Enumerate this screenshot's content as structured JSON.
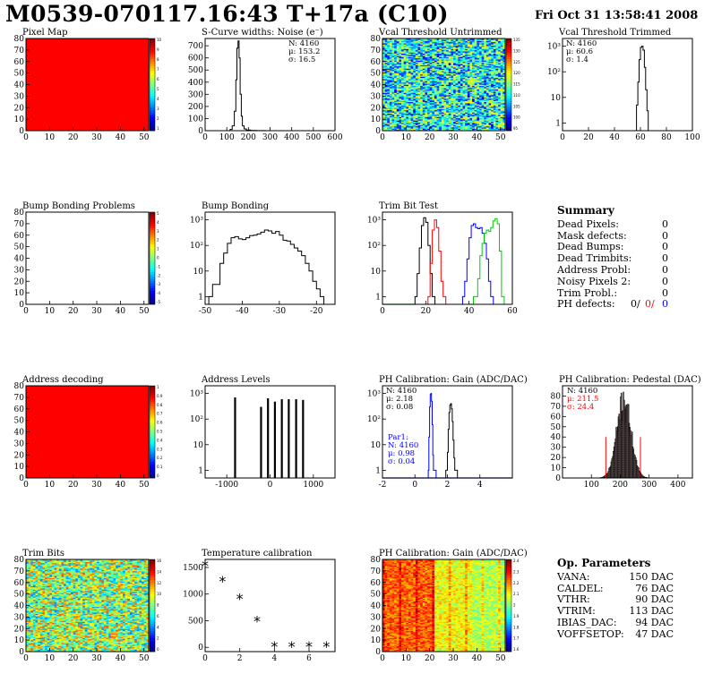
{
  "header": {
    "title": "M0539-070117.16:43 T+17a (C10)",
    "date": "Fri Oct 31 13:58:41 2008"
  },
  "colors": {
    "red": "#ff0000",
    "blue": "#0000ff",
    "green": "#00cc00",
    "frame": "#000000"
  },
  "chart_data": [
    {
      "id": "pixel_map",
      "type": "heatmap",
      "title": "Pixel Map",
      "xlim": [
        0,
        52
      ],
      "ylim": [
        0,
        80
      ],
      "xticks": [
        0,
        10,
        20,
        30,
        40,
        50
      ],
      "yticks": [
        0,
        10,
        20,
        30,
        40,
        50,
        60,
        70,
        80
      ],
      "fill": "uniform-red",
      "zlim": [
        0,
        10
      ],
      "zticks": [
        "10",
        "9",
        "8",
        "7",
        "6",
        "5",
        "4",
        "3",
        "2",
        "1"
      ]
    },
    {
      "id": "noise",
      "type": "line",
      "title": "S-Curve widths: Noise (e⁻)",
      "xlim": [
        0,
        600
      ],
      "ylim": [
        0,
        760
      ],
      "xticks": [
        0,
        100,
        200,
        300,
        400,
        500,
        600
      ],
      "yticks": [
        0,
        100,
        200,
        300,
        400,
        500,
        600,
        700
      ],
      "stats": [
        "N: 4160",
        "μ: 153.2",
        "σ: 16.5"
      ],
      "series": [
        {
          "color": "#000000",
          "x": [
            100,
            115,
            125,
            135,
            142,
            147,
            152,
            157,
            162,
            167,
            172,
            180,
            190,
            210,
            240,
            280
          ],
          "y": [
            0,
            10,
            40,
            160,
            420,
            680,
            740,
            600,
            300,
            120,
            40,
            15,
            6,
            2,
            1,
            0
          ]
        }
      ]
    },
    {
      "id": "vcal_untrimmed",
      "type": "heatmap",
      "title": "Vcal Threshold Untrimmed",
      "xlim": [
        0,
        52
      ],
      "ylim": [
        0,
        80
      ],
      "xticks": [
        0,
        10,
        20,
        30,
        40,
        50
      ],
      "yticks": [
        0,
        10,
        20,
        30,
        40,
        50,
        60,
        70,
        80
      ],
      "fill": "noise-jet",
      "zlim": [
        95,
        135
      ],
      "zticks": [
        "135",
        "130",
        "125",
        "120",
        "115",
        "110",
        "105",
        "100",
        "95"
      ]
    },
    {
      "id": "vcal_trimmed",
      "type": "line",
      "title": "Vcal Threshold Trimmed",
      "xlim": [
        0,
        100
      ],
      "ylim": [
        0.5,
        2000
      ],
      "log": true,
      "xticks": [
        0,
        20,
        40,
        60,
        80,
        100
      ],
      "yticks": [
        1,
        10,
        100,
        1000
      ],
      "ytickLabels": [
        "1",
        "10",
        "10²",
        "10³"
      ],
      "stats": [
        "N: 4160",
        "μ: 60.6",
        "σ:  1.4"
      ],
      "series": [
        {
          "color": "#000000",
          "x": [
            55,
            57,
            58,
            59,
            60,
            61,
            62,
            63,
            64,
            65,
            66
          ],
          "y": [
            0.5,
            5,
            40,
            300,
            900,
            1000,
            700,
            150,
            20,
            3,
            0.5
          ]
        }
      ]
    },
    {
      "id": "bump_problems",
      "type": "heatmap",
      "title": "Bump Bonding Problems",
      "xlim": [
        0,
        52
      ],
      "ylim": [
        0,
        80
      ],
      "xticks": [
        0,
        10,
        20,
        30,
        40,
        50
      ],
      "yticks": [
        0,
        10,
        20,
        30,
        40,
        50,
        60,
        70,
        80
      ],
      "fill": "empty",
      "zlim": [
        -5,
        5
      ],
      "zticks": [
        "5",
        "4",
        "3",
        "2",
        "1",
        "0",
        "-1",
        "-2",
        "-3",
        "-4",
        "-5"
      ]
    },
    {
      "id": "bump_bonding",
      "type": "line",
      "title": "Bump Bonding",
      "xlim": [
        -50,
        -15
      ],
      "ylim": [
        0.5,
        2000
      ],
      "log": true,
      "xticks": [
        -50,
        -40,
        -30,
        -20
      ],
      "yticks": [
        1,
        10,
        100,
        1000
      ],
      "ytickLabels": [
        "1",
        "10",
        "10²",
        "10³"
      ],
      "series": [
        {
          "color": "#000000",
          "x": [
            -49,
            -48,
            -46,
            -45,
            -44,
            -43,
            -42,
            -41,
            -40,
            -39,
            -38,
            -37,
            -36,
            -35,
            -34,
            -33,
            -32,
            -31,
            -30,
            -29,
            -28,
            -27,
            -26,
            -25,
            -24,
            -23,
            -22,
            -21,
            -20,
            -19,
            -18
          ],
          "y": [
            1,
            3,
            20,
            50,
            120,
            200,
            220,
            180,
            170,
            200,
            240,
            250,
            280,
            330,
            400,
            370,
            300,
            350,
            250,
            160,
            150,
            110,
            80,
            60,
            40,
            20,
            10,
            4,
            2,
            1,
            0.5
          ]
        }
      ]
    },
    {
      "id": "trim_bit_test",
      "type": "line",
      "title": "Trim Bit Test",
      "xlim": [
        0,
        60
      ],
      "ylim": [
        0.5,
        2000
      ],
      "log": true,
      "xticks": [
        0,
        20,
        40,
        60
      ],
      "yticks": [
        1,
        10,
        100,
        1000
      ],
      "ytickLabels": [
        "1",
        "10",
        "10²",
        "10³"
      ],
      "series": [
        {
          "color": "#000000",
          "x": [
            15,
            16,
            17,
            18,
            19,
            20,
            21,
            22,
            23
          ],
          "y": [
            1,
            8,
            80,
            600,
            1200,
            800,
            100,
            8,
            1
          ]
        },
        {
          "color": "#ff0000",
          "x": [
            21,
            22,
            23,
            24,
            25,
            26,
            27,
            28
          ],
          "y": [
            1,
            20,
            400,
            1000,
            500,
            60,
            4,
            1
          ]
        },
        {
          "color": "#0000ff",
          "x": [
            37,
            38,
            39,
            40,
            41,
            42,
            43,
            44,
            45,
            46,
            47,
            48,
            49,
            50
          ],
          "y": [
            1,
            4,
            30,
            200,
            600,
            700,
            500,
            450,
            500,
            300,
            120,
            30,
            4,
            1
          ]
        },
        {
          "color": "#00cc00",
          "x": [
            42,
            44,
            45,
            46,
            47,
            48,
            49,
            50,
            51,
            52,
            53,
            54,
            55
          ],
          "y": [
            1,
            5,
            40,
            120,
            300,
            400,
            350,
            500,
            900,
            1100,
            700,
            60,
            1
          ]
        }
      ]
    },
    {
      "id": "address_decoding",
      "type": "heatmap",
      "title": "Address decoding",
      "xlim": [
        0,
        52
      ],
      "ylim": [
        0,
        80
      ],
      "xticks": [
        0,
        10,
        20,
        30,
        40,
        50
      ],
      "yticks": [
        0,
        10,
        20,
        30,
        40,
        50,
        60,
        70,
        80
      ],
      "fill": "uniform-red",
      "zlim": [
        0,
        1
      ],
      "zticks": [
        "1",
        "0.9",
        "0.8",
        "0.7",
        "0.6",
        "0.5",
        "0.4",
        "0.3",
        "0.2",
        "0.1",
        "0"
      ]
    },
    {
      "id": "address_levels",
      "type": "bar",
      "title": "Address Levels",
      "xlim": [
        -1500,
        1500
      ],
      "ylim": [
        0.5,
        2000
      ],
      "log": true,
      "xticks": [
        -1000,
        0,
        1000
      ],
      "yticks": [
        1,
        10,
        100,
        1000
      ],
      "ytickLabels": [
        "1",
        "10",
        "10²",
        "10³"
      ],
      "x": [
        -810,
        -210,
        -50,
        110,
        270,
        430,
        600,
        760
      ],
      "values": [
        700,
        300,
        650,
        480,
        600,
        600,
        600,
        560
      ]
    },
    {
      "id": "ph_gain",
      "type": "line",
      "title": "PH Calibration: Gain (ADC/DAC)",
      "xlim": [
        -2,
        6
      ],
      "ylim": [
        0.5,
        2000
      ],
      "log": true,
      "xticks": [
        -2,
        0,
        2,
        4
      ],
      "yticks": [
        1,
        10,
        100,
        1000
      ],
      "ytickLabels": [
        "1",
        "10",
        "10²",
        "10³"
      ],
      "stats": [
        "N: 4160",
        "μ: 2.18",
        "σ: 0.08"
      ],
      "stats2": [
        "Par1:",
        "N: 4160",
        "μ: 0.98",
        "σ: 0.04"
      ],
      "series": [
        {
          "color": "#000000",
          "x": [
            1.9,
            2.0,
            2.05,
            2.1,
            2.15,
            2.2,
            2.25,
            2.3,
            2.35,
            2.4,
            2.45
          ],
          "y": [
            1,
            5,
            40,
            180,
            350,
            400,
            250,
            80,
            15,
            3,
            1
          ]
        },
        {
          "color": "#0000ff",
          "x": [
            0.82,
            0.86,
            0.9,
            0.94,
            0.98,
            1.02,
            1.06,
            1.1,
            1.14
          ],
          "y": [
            1,
            20,
            300,
            900,
            1000,
            500,
            60,
            4,
            1
          ]
        }
      ]
    },
    {
      "id": "ph_pedestal",
      "type": "bar",
      "title": "PH Calibration: Pedestal (DAC)",
      "xlim": [
        0,
        450
      ],
      "ylim": [
        0,
        90
      ],
      "xticks": [
        100,
        200,
        300,
        400
      ],
      "yticks": [
        0,
        10,
        20,
        30,
        40,
        50,
        60,
        70,
        80
      ],
      "stats": [
        "N: 4160",
        "μ: 211.5",
        "σ: 24.4"
      ],
      "values_note": "gaussian",
      "mean": 211.5,
      "sigma": 24.4,
      "peak": 80,
      "cut_lines": [
        150,
        270
      ]
    },
    {
      "id": "trim_bits",
      "type": "heatmap",
      "title": "Trim Bits",
      "xlim": [
        0,
        52
      ],
      "ylim": [
        0,
        80
      ],
      "xticks": [
        0,
        10,
        20,
        30,
        40,
        50
      ],
      "yticks": [
        0,
        10,
        20,
        30,
        40,
        50,
        60,
        70,
        80
      ],
      "fill": "trim-jet",
      "zlim": [
        0,
        16
      ],
      "zticks": [
        "16",
        "14",
        "12",
        "10",
        "8",
        "6",
        "4",
        "2",
        "0"
      ]
    },
    {
      "id": "temperature",
      "type": "scatter",
      "title": "Temperature calibration",
      "xlim": [
        0,
        7.5
      ],
      "ylim": [
        -80,
        1650
      ],
      "xticks": [
        0,
        2,
        4,
        6
      ],
      "yticks": [
        0,
        500,
        1000,
        1500
      ],
      "x": [
        0,
        1,
        2,
        3,
        4,
        5,
        6,
        7
      ],
      "y": [
        1520,
        1230,
        900,
        480,
        0,
        0,
        0,
        0
      ]
    },
    {
      "id": "ph_gain_map",
      "type": "heatmap",
      "title": "PH Calibration: Gain (ADC/DAC)",
      "xlim": [
        0,
        52
      ],
      "ylim": [
        0,
        80
      ],
      "xticks": [
        0,
        10,
        20,
        30,
        40,
        50
      ],
      "yticks": [
        0,
        10,
        20,
        30,
        40,
        50,
        60,
        70,
        80
      ],
      "fill": "gain-map",
      "zlim": [
        1.5,
        2.5
      ],
      "zticks": [
        "2.4",
        "2.3",
        "2.2",
        "2.1",
        "2",
        "1.9",
        "1.8",
        "1.7",
        "1.6"
      ]
    }
  ],
  "summary": {
    "heading": "Summary",
    "rows": [
      {
        "k": "Dead Pixels:",
        "v": "0"
      },
      {
        "k": "Mask defects:",
        "v": "0"
      },
      {
        "k": "Dead Bumps:",
        "v": "0"
      },
      {
        "k": "Dead Trimbits:",
        "v": "0"
      },
      {
        "k": "Address Probl:",
        "v": "0"
      },
      {
        "k": "Noisy Pixels 2:",
        "v": "0"
      },
      {
        "k": "Trim Probl.:",
        "v": "0"
      }
    ],
    "ph_label": "PH defects:",
    "ph_values": [
      "0/",
      "0/",
      "0"
    ]
  },
  "op_params": {
    "heading": "Op. Parameters",
    "rows": [
      {
        "k": "VANA:",
        "v": "150 DAC"
      },
      {
        "k": "CALDEL:",
        "v": "76 DAC"
      },
      {
        "k": "VTHR:",
        "v": "90 DAC"
      },
      {
        "k": "VTRIM:",
        "v": "113 DAC"
      },
      {
        "k": "IBIAS_DAC:",
        "v": "94 DAC"
      },
      {
        "k": "VOFFSETOP:",
        "v": "47 DAC"
      }
    ]
  }
}
